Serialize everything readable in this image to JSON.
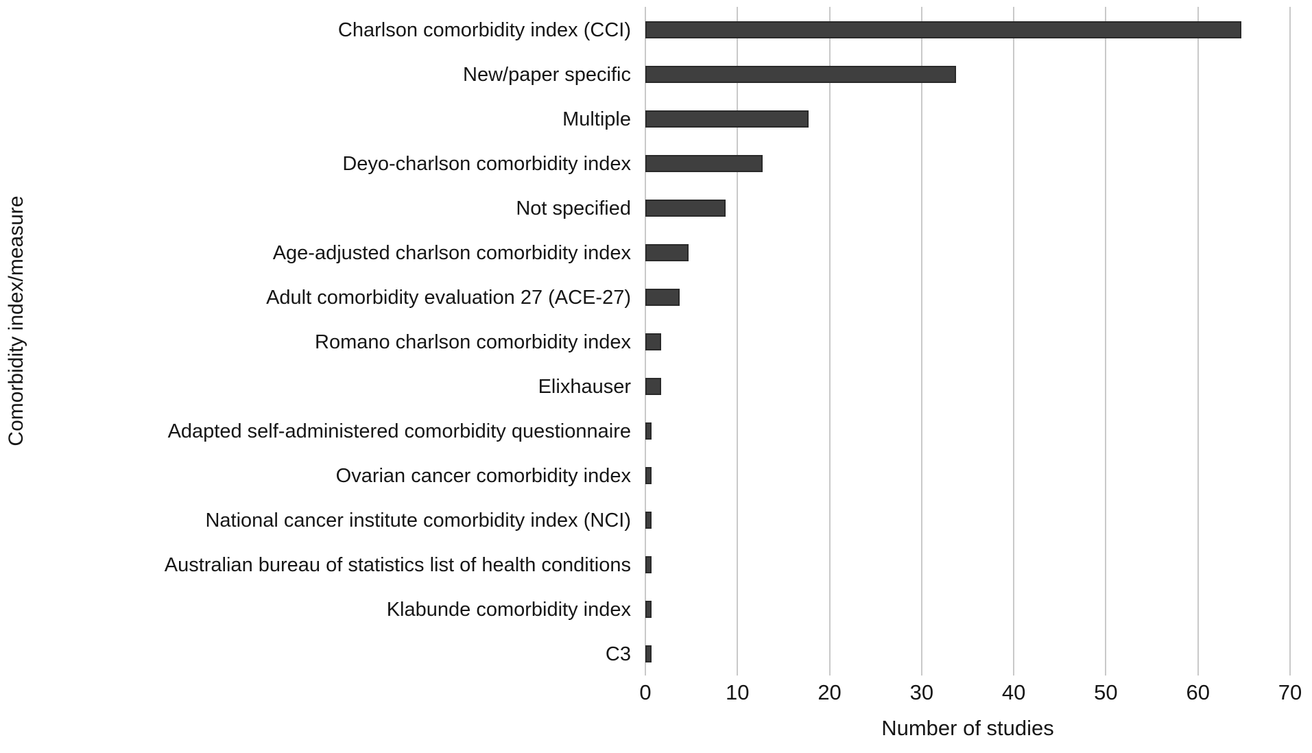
{
  "chart_data": {
    "type": "bar",
    "orientation": "horizontal",
    "title": "",
    "xlabel": "Number of studies",
    "ylabel": "Comorbidity index/measure",
    "categories": [
      "Charlson comorbidity index (CCI)",
      "New/paper specific",
      "Multiple",
      "Deyo-charlson comorbidity index",
      "Not specified",
      "Age-adjusted charlson comorbidity index",
      "Adult comorbidity evaluation 27 (ACE-27)",
      "Romano charlson comorbidity index",
      "Elixhauser",
      "Adapted self-administered comorbidity questionnaire",
      "Ovarian cancer comorbidity index",
      "National cancer institute comorbidity index (NCI)",
      "Australian bureau of statistics list of health conditions",
      "Klabunde comorbidity index",
      "C3"
    ],
    "values": [
      65,
      34,
      18,
      13,
      9,
      5,
      4,
      2,
      2,
      1,
      1,
      1,
      1,
      1,
      1
    ],
    "xlim": [
      0,
      70
    ],
    "xticks": [
      0,
      10,
      20,
      30,
      40,
      50,
      60,
      70
    ],
    "grid": "vertical",
    "legend": "none",
    "colors": {
      "bar_fill": "#3f3f3f",
      "bar_edge": "#2a2a2a",
      "gridline": "#c9c9c9",
      "text": "#161616",
      "background": "#ffffff"
    }
  }
}
